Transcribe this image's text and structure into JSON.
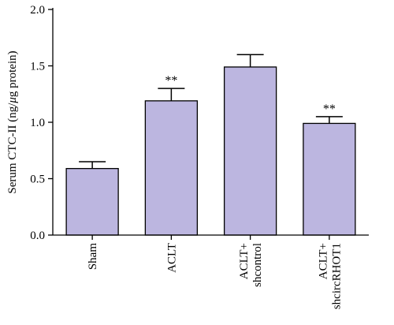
{
  "chart_data": {
    "type": "bar",
    "ylabel_parts": [
      "Serum CTC-II (ng/",
      "μ",
      "g protein)"
    ],
    "ylim": [
      0,
      2.0
    ],
    "yticks": [
      "0.0",
      "0.5",
      "1.0",
      "1.5",
      "2.0"
    ],
    "categories": [
      [
        "Sham"
      ],
      [
        "ACLT"
      ],
      [
        "ACLT+",
        "shcontrol"
      ],
      [
        "ACLT+",
        "shcircRHOT1"
      ]
    ],
    "values": [
      0.59,
      1.19,
      1.49,
      0.99
    ],
    "errors": [
      0.06,
      0.11,
      0.11,
      0.06
    ],
    "annotations": [
      "",
      "**",
      "",
      "**"
    ],
    "bar_color": "#bcb6e0",
    "grid": false,
    "legend": "none"
  }
}
